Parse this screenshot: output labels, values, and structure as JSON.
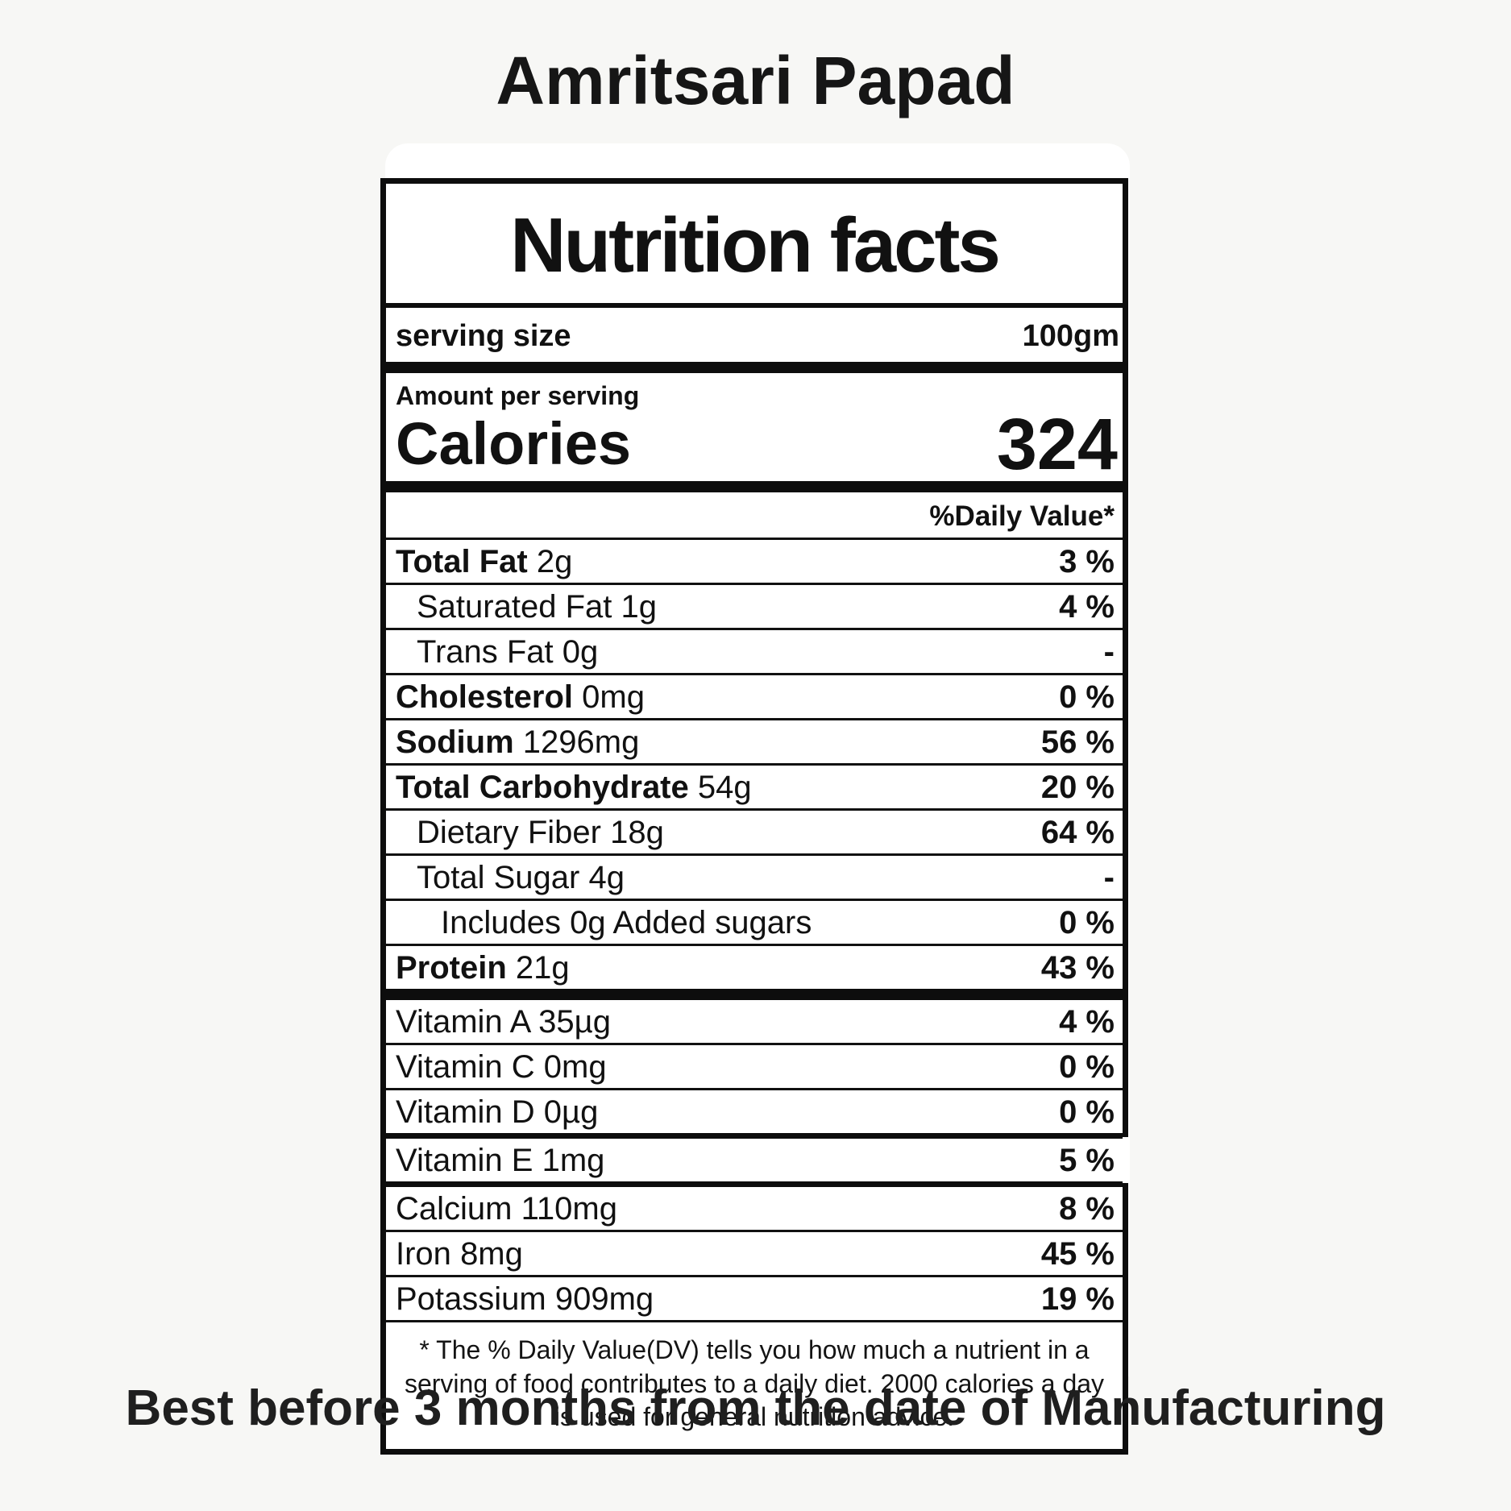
{
  "page": {
    "background": "#f7f7f5",
    "title": "Amritsari Papad",
    "best_before": "Best before 3 months from the date of Manufacturing"
  },
  "label": {
    "header": "Nutrition facts",
    "serving_size_label": "serving size",
    "serving_size_value": "100gm",
    "amount_per_serving": "Amount per serving",
    "calories_label": "Calories",
    "calories_value": "324",
    "daily_value_header": "%Daily Value*",
    "rows": [
      {
        "name": "Total Fat",
        "amount": "2g",
        "dv": "3 %"
      },
      {
        "name": "Saturated Fat",
        "amount": "1g",
        "dv": "4 %"
      },
      {
        "name": "Trans Fat",
        "amount": "0g",
        "dv": "-"
      },
      {
        "name": "Cholesterol",
        "amount": "0mg",
        "dv": "0 %"
      },
      {
        "name": "Sodium",
        "amount": "1296mg",
        "dv": "56 %"
      },
      {
        "name": "Total Carbohydrate",
        "amount": "54g",
        "dv": "20 %"
      },
      {
        "name": "Dietary Fiber",
        "amount": "18g",
        "dv": "64 %"
      },
      {
        "name": "Total Sugar",
        "amount": "4g",
        "dv": "-"
      },
      {
        "name": "Includes 0g Added sugars",
        "amount": "",
        "dv": "0 %"
      },
      {
        "name": "Protein",
        "amount": "21g",
        "dv": "43 %"
      },
      {
        "name": "Vitamin A",
        "amount": "35µg",
        "dv": "4 %"
      },
      {
        "name": "Vitamin C",
        "amount": "0mg",
        "dv": "0 %"
      },
      {
        "name": "Vitamin D",
        "amount": "0µg",
        "dv": "0 %"
      },
      {
        "name": "Vitamin E",
        "amount": "1mg",
        "dv": "5 %"
      },
      {
        "name": "Calcium",
        "amount": "110mg",
        "dv": "8 %"
      },
      {
        "name": "Iron",
        "amount": "8mg",
        "dv": "45 %"
      },
      {
        "name": "Potassium",
        "amount": "909mg",
        "dv": "19 %"
      }
    ],
    "footnote": "* The % Daily Value(DV) tells you how much a nutrient in a serving of food contributes to a daily diet. 2000 calories a day is used for general nutrition advice."
  }
}
